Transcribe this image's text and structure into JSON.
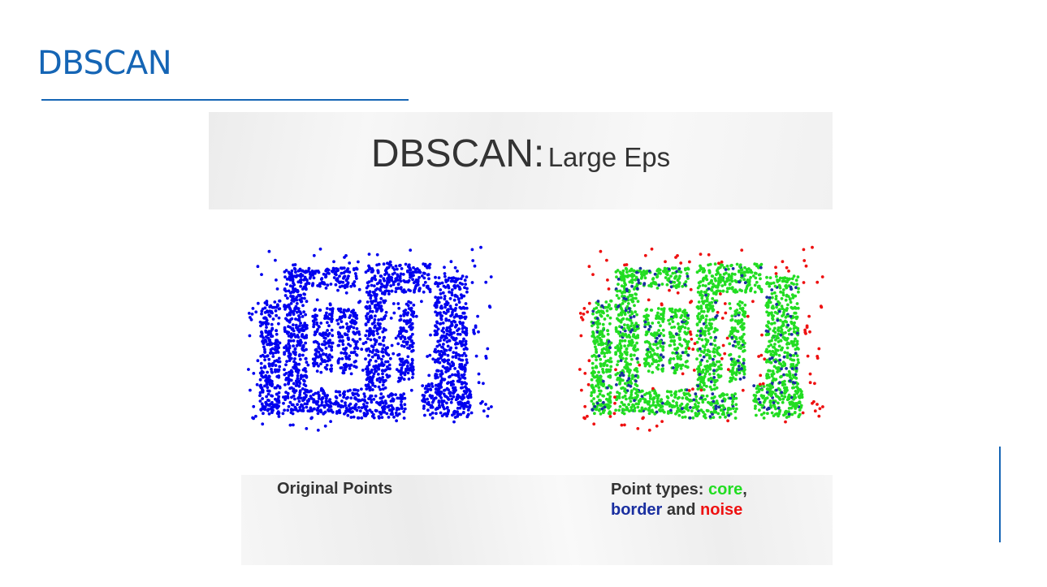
{
  "slide": {
    "title": "DBSCAN"
  },
  "colors": {
    "accent": "#1565b5",
    "original": "#0000ee",
    "core": "#22dd22",
    "border": "#1a2fa0",
    "noise": "#ee1111"
  },
  "figure": {
    "title_main": "DBSCAN:",
    "title_sub": "Large Eps",
    "caption_left": "Original Points",
    "caption_right": {
      "prefix": "Point types: ",
      "core": "core",
      "comma": ",",
      "border": "border",
      "and": " and ",
      "noise": "noise"
    }
  },
  "chart_data": [
    {
      "type": "scatter",
      "title": "",
      "xlabel": "",
      "ylabel": "",
      "grid": false,
      "series": [
        {
          "color": "#0000ee",
          "point_count": "dense sample (~3000 points)"
        }
      ]
    },
    {
      "type": "scatter",
      "title": "",
      "xlabel": "",
      "ylabel": "",
      "grid": false,
      "series": [
        {
          "name": "core",
          "color": "#22dd22"
        },
        {
          "name": "border",
          "color": "#1a2fa0"
        },
        {
          "name": "noise",
          "color": "#ee1111"
        }
      ]
    }
  ]
}
